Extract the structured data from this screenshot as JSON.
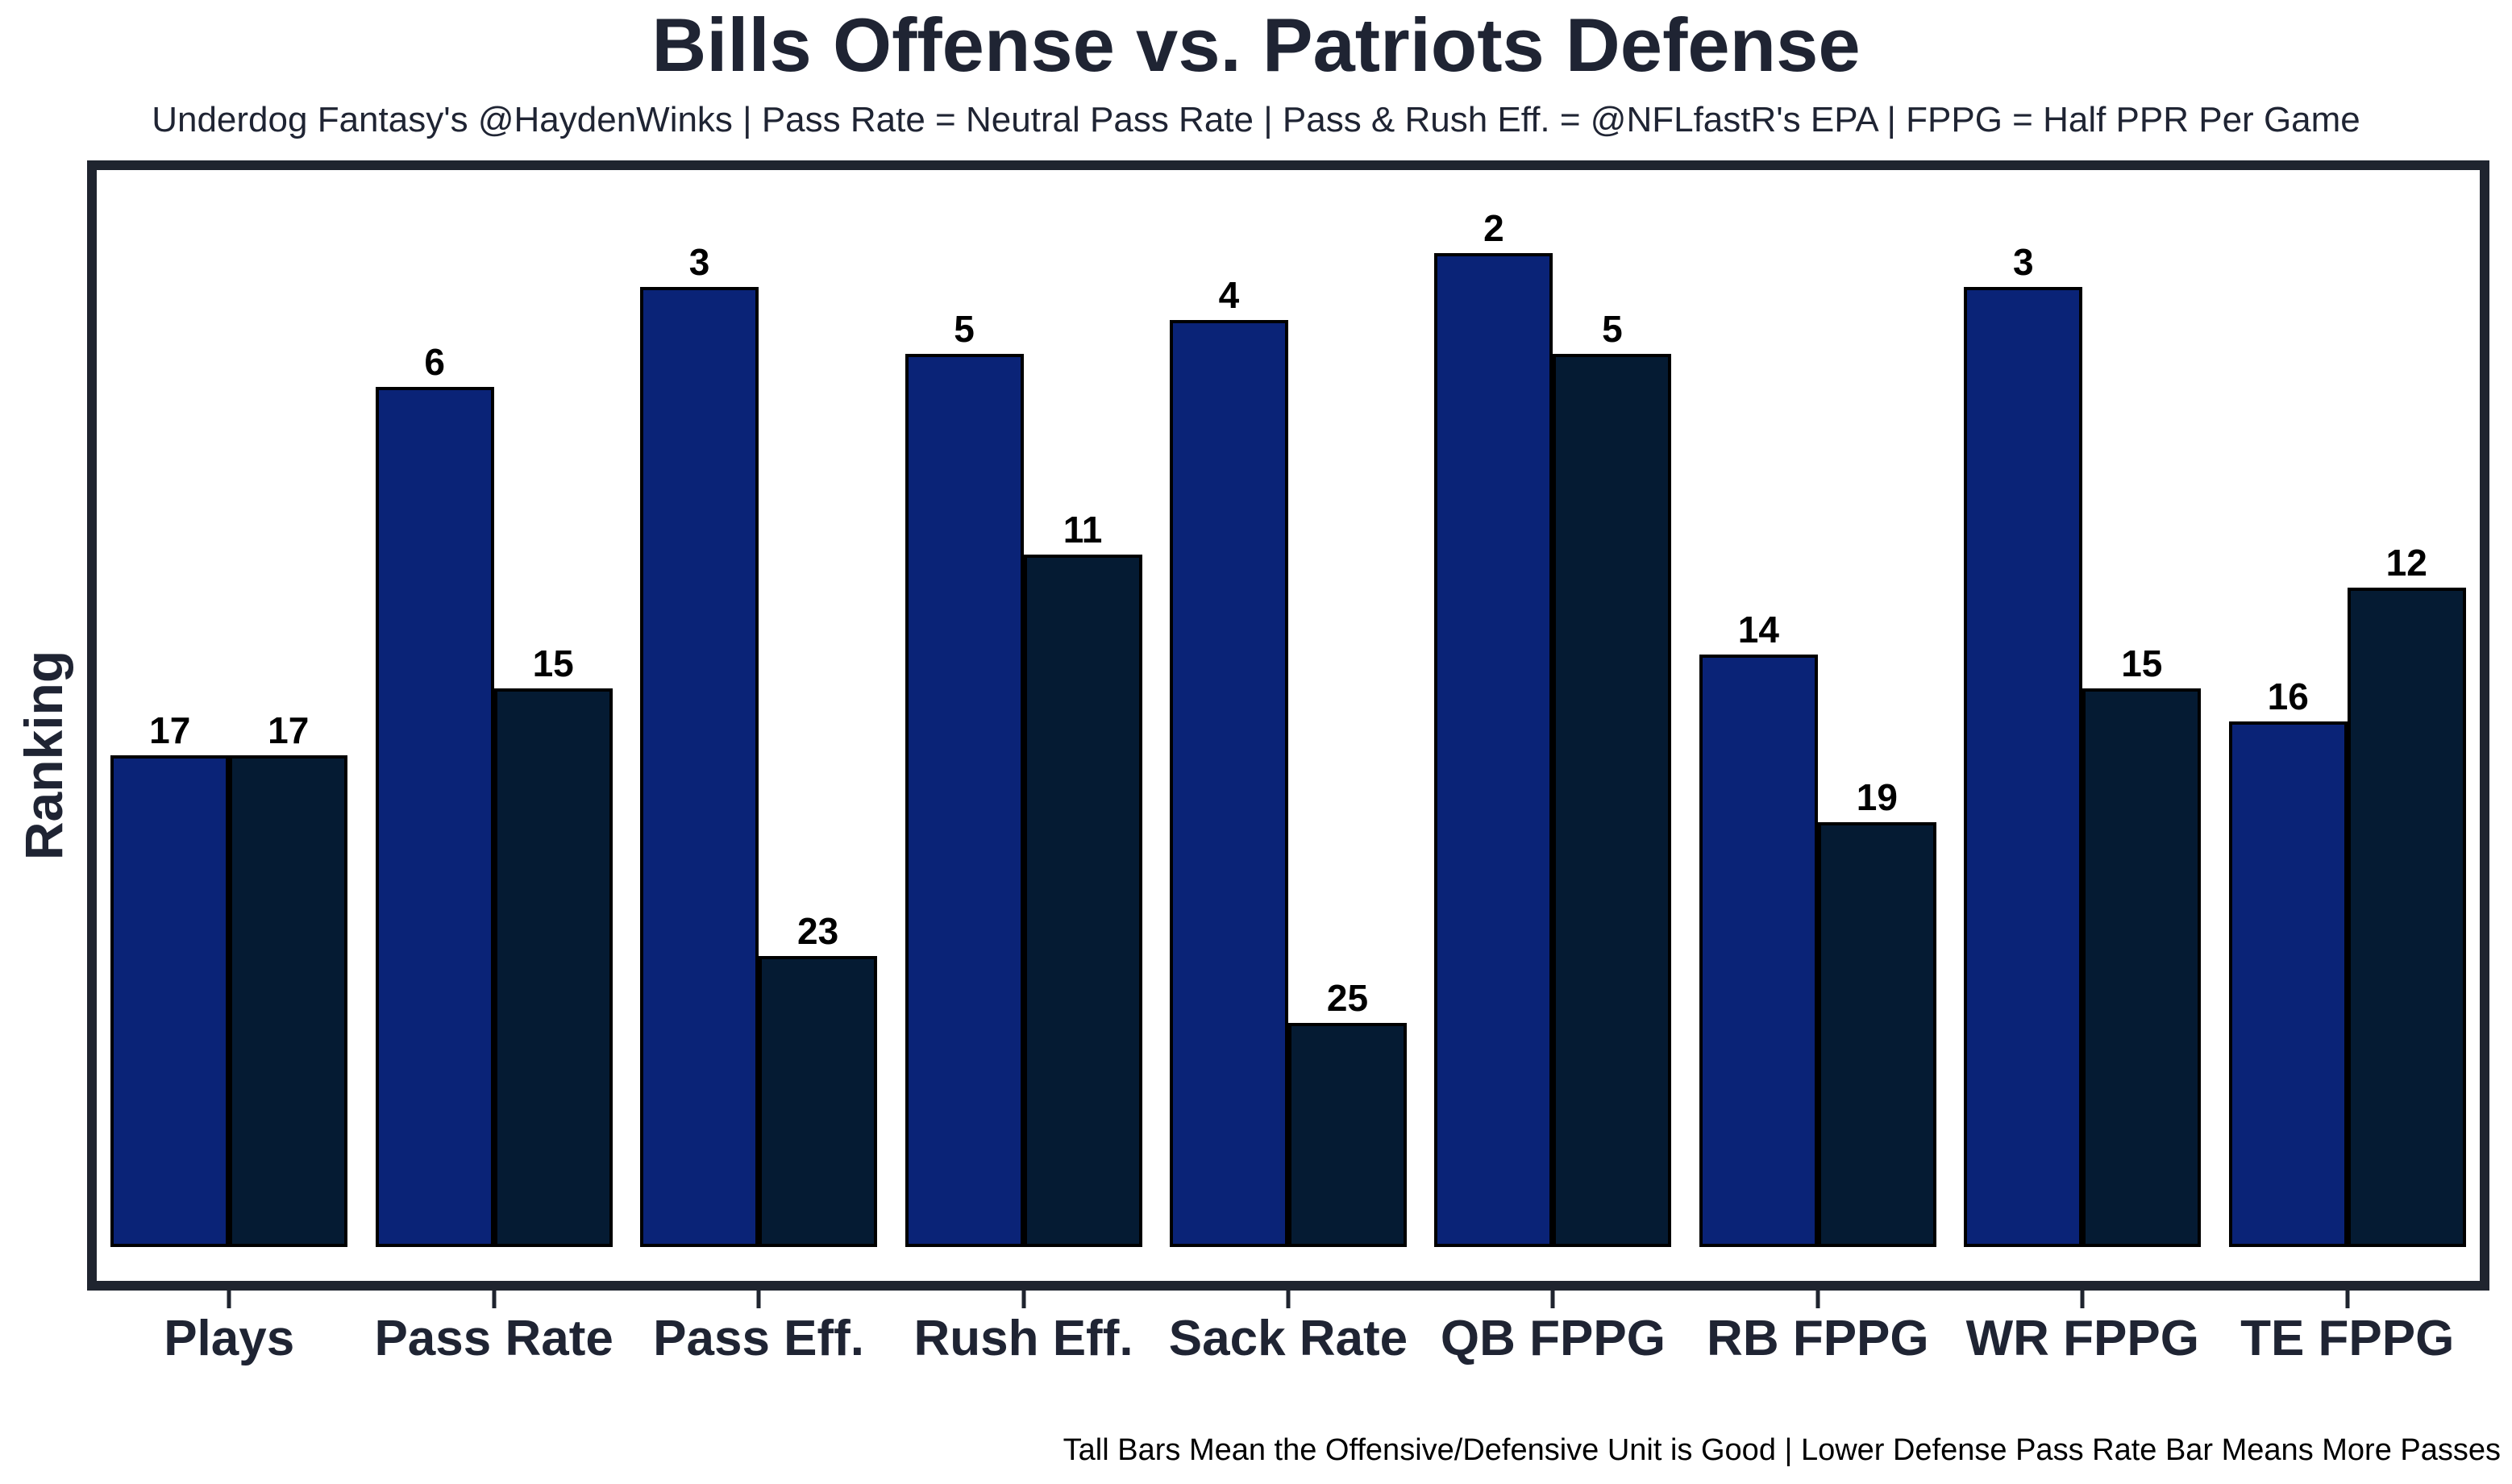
{
  "title": "Bills Offense vs. Patriots Defense",
  "subtitle": "Underdog Fantasy's @HaydenWinks | Pass Rate = Neutral Pass Rate | Pass & Rush Eff. = @NFLfastR's EPA | FPPG = Half PPR Per Game",
  "footer_note": "Tall Bars Mean the Offensive/Defensive Unit is Good | Lower Defense Pass Rate Bar Means More Passes",
  "chart_data": {
    "type": "bar",
    "title": "Bills Offense vs. Patriots Defense",
    "xlabel": "",
    "ylabel": "Ranking",
    "categories": [
      "Plays",
      "Pass Rate",
      "Pass Eff.",
      "Rush Eff.",
      "Sack Rate",
      "QB FPPG",
      "RB FPPG",
      "WR FPPG",
      "TE FPPG"
    ],
    "series": [
      {
        "name": "Bills Offense",
        "color": "#0a2377",
        "values": [
          17,
          6,
          3,
          5,
          4,
          2,
          14,
          3,
          16
        ]
      },
      {
        "name": "Patriots Defense",
        "color": "#051b33",
        "values": [
          17,
          15,
          23,
          11,
          25,
          5,
          19,
          15,
          12
        ]
      }
    ],
    "value_meaning": "NFL ranking out of 32 (1 = best); taller bar = better ranking",
    "bar_labels": "rank values shown above each bar",
    "legend": "none",
    "grid": false,
    "y_ticks": "none",
    "ylim_ranks": [
      32,
      1
    ],
    "colors": {
      "frame": "#1f242f",
      "text": "#1f2433",
      "bar_edge": "#000000",
      "background": "#ffffff"
    }
  }
}
